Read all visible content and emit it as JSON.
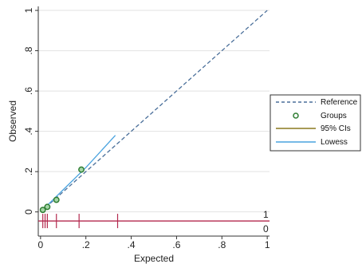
{
  "chart_data": {
    "type": "scatter",
    "title": "",
    "xlabel": "Expected",
    "ylabel": "Observed",
    "xlim": [
      -0.01,
      1.01
    ],
    "ylim": [
      -0.12,
      1.02
    ],
    "x_ticks": [
      0,
      0.2,
      0.4,
      0.6,
      0.8,
      1
    ],
    "x_tick_labels": [
      "0",
      ".2",
      ".4",
      ".6",
      ".8",
      "1"
    ],
    "y_ticks": [
      0,
      0.2,
      0.4,
      0.6,
      0.8,
      1
    ],
    "y_tick_labels": [
      "0",
      ".2",
      ".4",
      ".6",
      ".8",
      "1"
    ],
    "grid": true,
    "legend_position": "right",
    "reference_line": {
      "name": "Reference",
      "x": [
        0,
        1
      ],
      "y": [
        0,
        1
      ],
      "color": "#4a6f9a",
      "style": "dashed"
    },
    "groups": {
      "name": "Groups",
      "color": "#2e7d32",
      "x": [
        0.01,
        0.03,
        0.07,
        0.18
      ],
      "y": [
        0.01,
        0.025,
        0.06,
        0.21
      ]
    },
    "ci": {
      "name": "95% CIs",
      "color": "#8a7a1f"
    },
    "lowess": {
      "name": "Lowess",
      "color": "#4aa3df",
      "x": [
        0.0,
        0.05,
        0.1,
        0.2,
        0.33
      ],
      "y": [
        0.0,
        0.055,
        0.11,
        0.22,
        0.38
      ]
    },
    "spike_plot": {
      "baseline_y": -0.045,
      "color": "#b3294e",
      "outcome1_x": [
        0.01,
        0.02,
        0.03,
        0.07,
        0.17,
        0.34
      ],
      "labels": [
        "1",
        "0"
      ]
    },
    "legend": [
      "Reference",
      "Groups",
      "95% CIs",
      "Lowess"
    ]
  }
}
